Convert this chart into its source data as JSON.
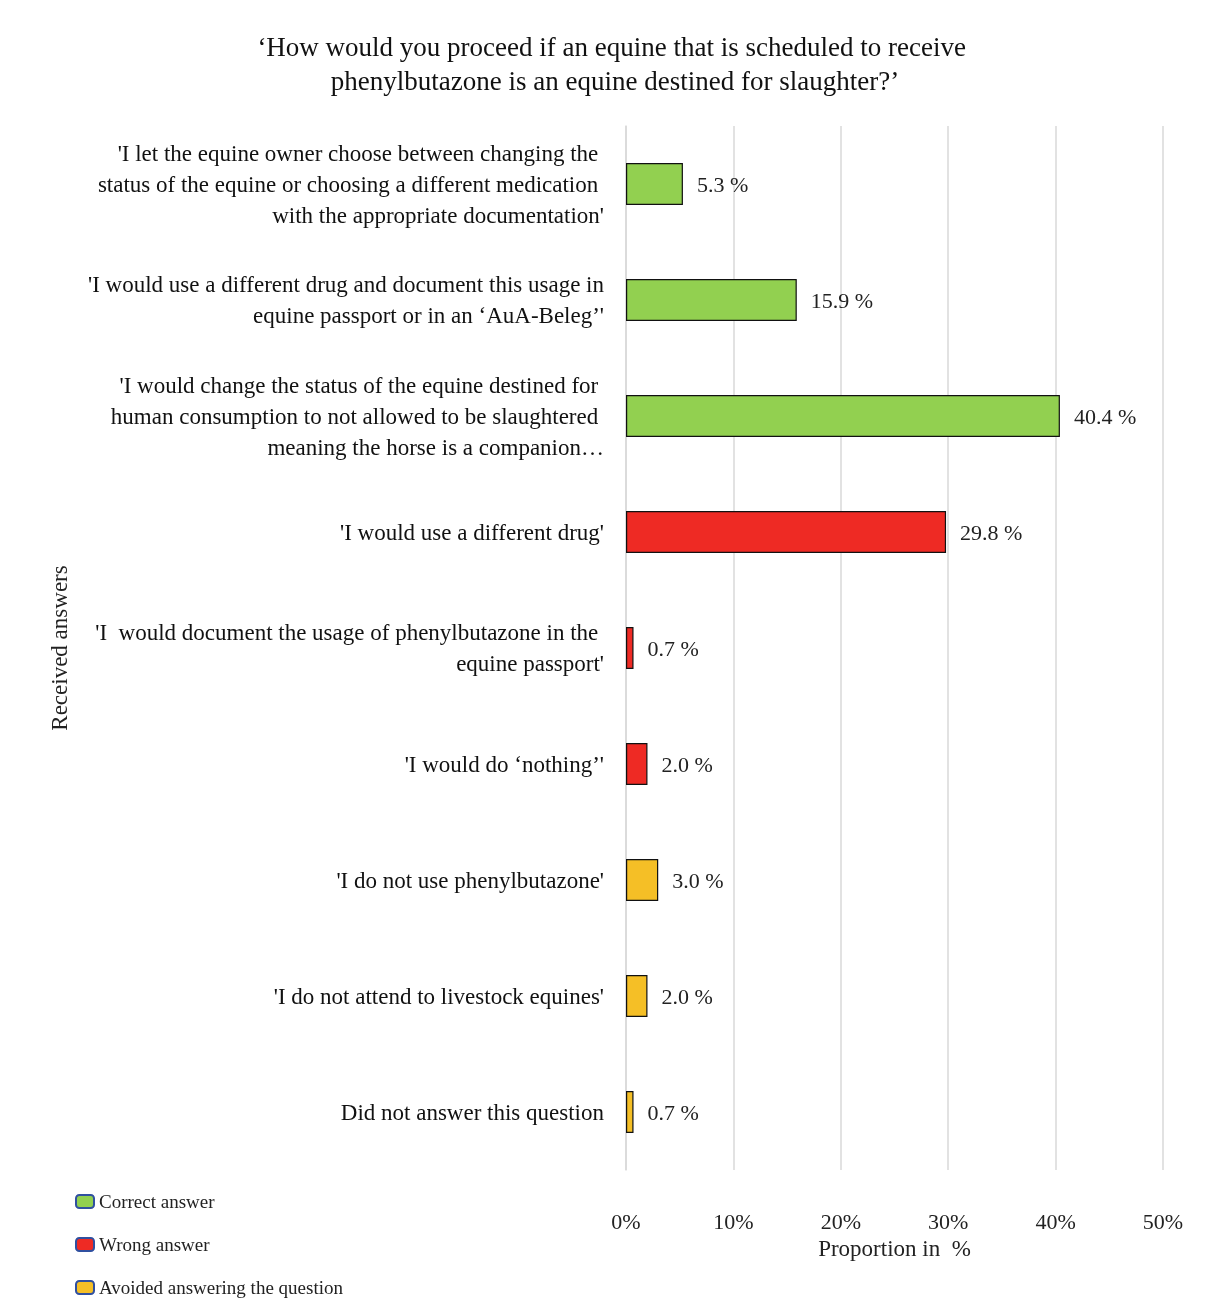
{
  "chart_data": {
    "type": "bar",
    "orientation": "horizontal",
    "stacked": true,
    "title": "‘How would you proceed if an equine that is scheduled to receive phenylbutazone is an equine destined for slaughter?’",
    "xlabel": "Proportion in  %",
    "ylabel": "Received answers",
    "categories": [
      "'I let the equine owner choose between changing the status of the equine or choosing a different medication with the appropriate documentation'",
      "'I would use a different drug and document this usage in equine passport or in an ‘AuA-Beleg’'",
      "'I would change the status of the equine destined for human consumption to not allowed to be slaughtered meaning the horse is a companion…",
      "'I would use a different drug'",
      "'I  would document the usage of phenylbutazone in the equine passport'",
      "'I would do ‘nothing’'",
      "'I do not use phenylbutazone'",
      "'I do not attend to livestock equines'",
      "Did not answer this question"
    ],
    "series": [
      {
        "name": "Correct answer",
        "color": "#92d050",
        "values": [
          5.3,
          15.9,
          40.4,
          null,
          null,
          null,
          null,
          null,
          null
        ],
        "value_labels": [
          "5.3 %",
          "15.9 %",
          "40.4 %",
          null,
          null,
          null,
          null,
          null,
          null
        ]
      },
      {
        "name": "Wrong answer",
        "color": "#ee2a24",
        "values": [
          null,
          null,
          null,
          29.8,
          0.7,
          2.0,
          null,
          null,
          null
        ],
        "value_labels": [
          null,
          null,
          null,
          "29.8 %",
          "0.7 %",
          "2.0 %",
          null,
          null,
          null
        ]
      },
      {
        "name": "Avoided answering the question",
        "color": "#f5bf26",
        "values": [
          null,
          null,
          null,
          null,
          null,
          null,
          3.0,
          2.0,
          0.7
        ],
        "value_labels": [
          null,
          null,
          null,
          null,
          null,
          null,
          "3.0 %",
          "2.0 %",
          "0.7 %"
        ]
      }
    ],
    "xlim": [
      0,
      50
    ],
    "xticks": [
      {
        "value": 0,
        "label": "0%"
      },
      {
        "value": 10,
        "label": "10%"
      },
      {
        "value": 20,
        "label": "20%"
      },
      {
        "value": 30,
        "label": "30%"
      },
      {
        "value": 40,
        "label": "40%"
      },
      {
        "value": 50,
        "label": "50%"
      }
    ],
    "grid": "x",
    "legend": "bottom left"
  }
}
